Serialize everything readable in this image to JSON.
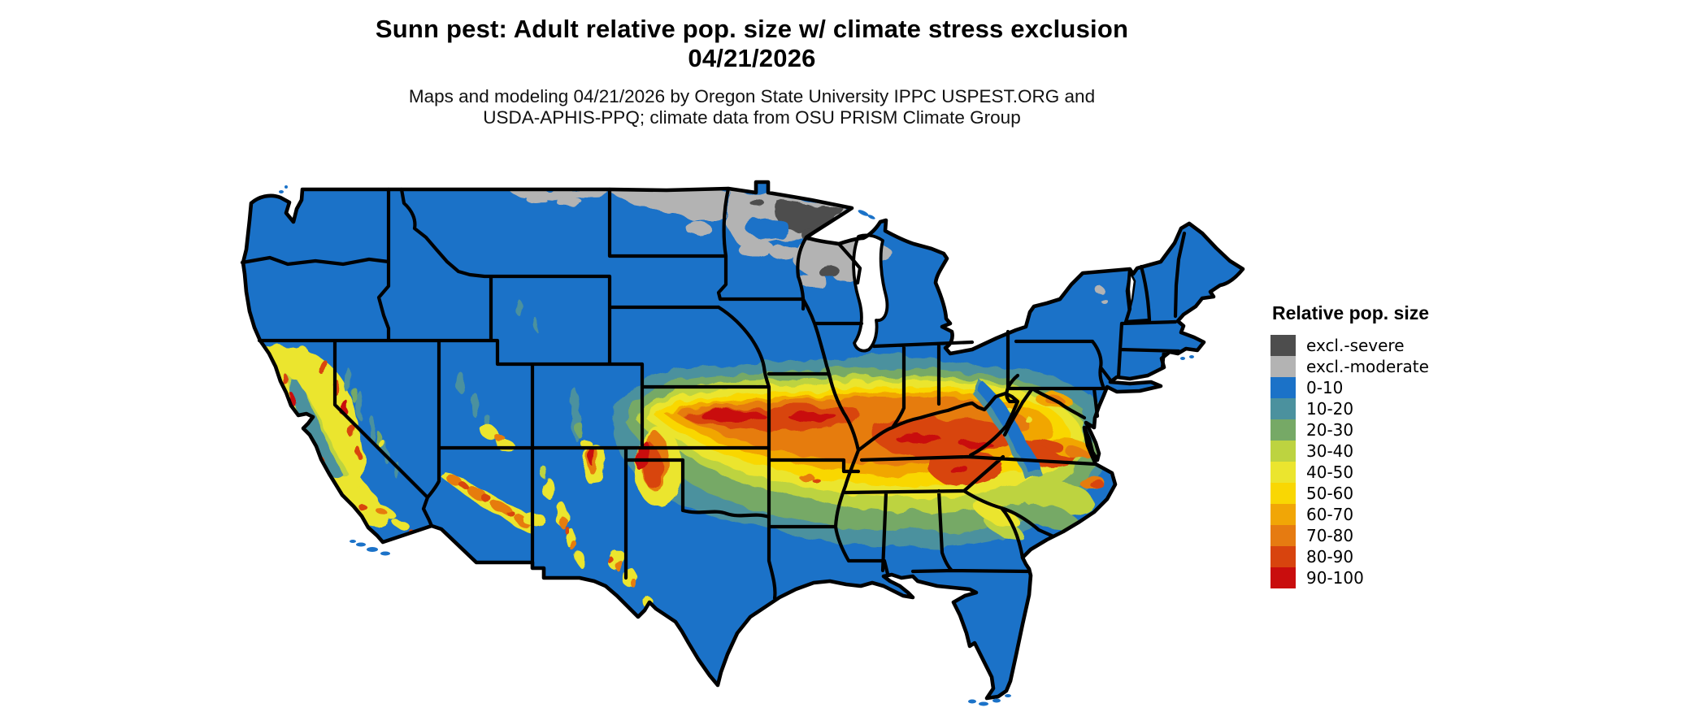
{
  "title": {
    "line1": "Sunn pest: Adult relative pop. size w/ climate stress exclusion",
    "line2": "04/21/2026"
  },
  "subtitle": {
    "line1": "Maps and modeling 04/21/2026 by Oregon State University IPPC USPEST.ORG and",
    "line2": "USDA-APHIS-PPQ; climate data from OSU PRISM Climate Group"
  },
  "legend": {
    "title": "Relative pop. size",
    "items": [
      {
        "label": "excl.-severe",
        "color": "#4d4d4d"
      },
      {
        "label": "excl.-moderate",
        "color": "#b3b3b3"
      },
      {
        "label": "0-10",
        "color": "#1b72c8"
      },
      {
        "label": "10-20",
        "color": "#4b919e"
      },
      {
        "label": "20-30",
        "color": "#76a966"
      },
      {
        "label": "30-40",
        "color": "#bdd340"
      },
      {
        "label": "40-50",
        "color": "#ebe52e"
      },
      {
        "label": "50-60",
        "color": "#f9d703"
      },
      {
        "label": "60-70",
        "color": "#f1a606"
      },
      {
        "label": "70-80",
        "color": "#e67b11"
      },
      {
        "label": "80-90",
        "color": "#d8440e"
      },
      {
        "label": "90-100",
        "color": "#c90d0d"
      }
    ]
  },
  "colors": {
    "background": "#ffffff",
    "state_border": "#000000",
    "water": "#ffffff"
  }
}
